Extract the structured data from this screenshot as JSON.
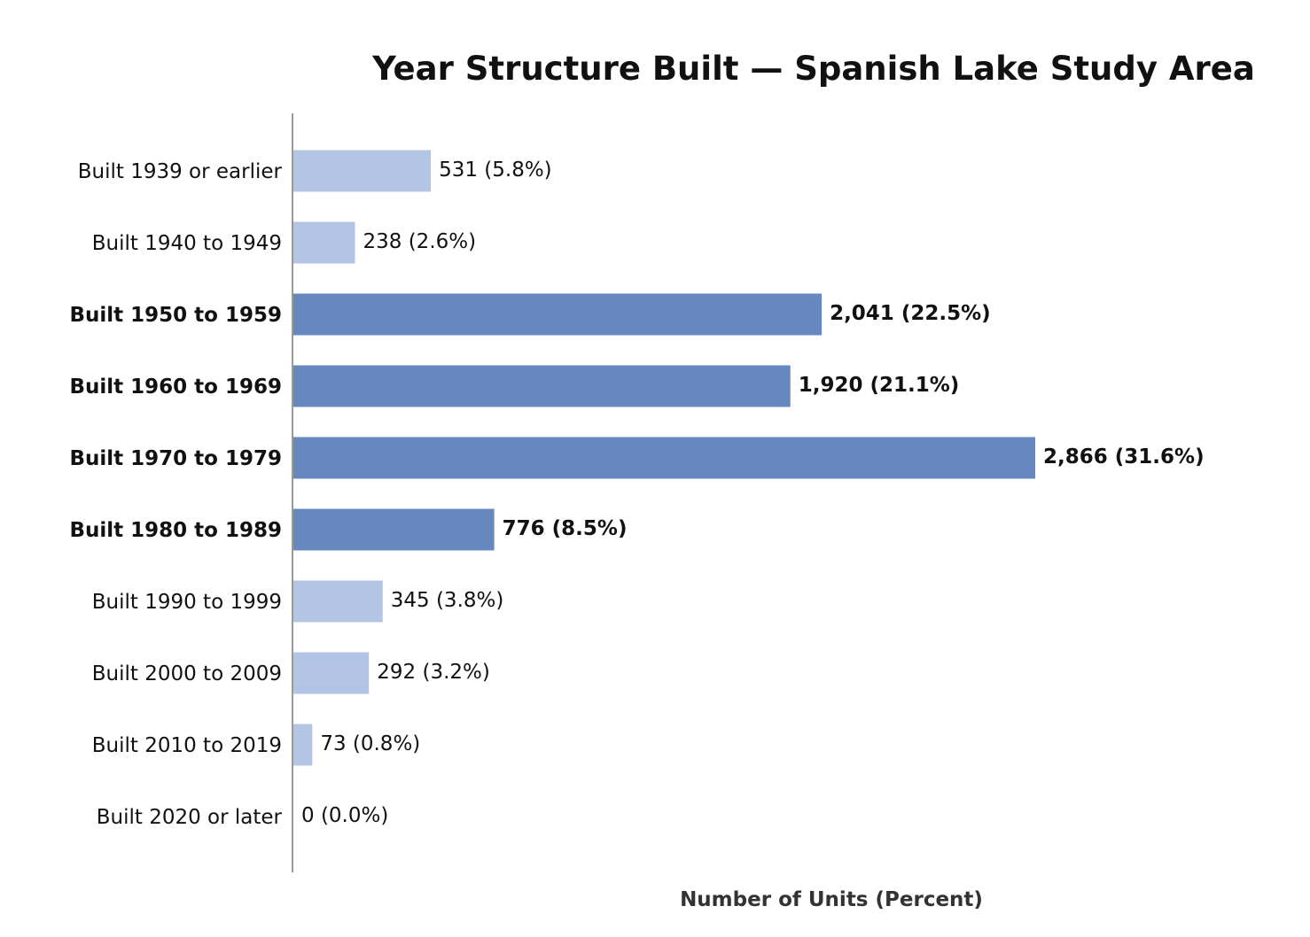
{
  "chart_data": {
    "type": "bar",
    "orientation": "horizontal",
    "title": "Year Structure Built — Spanish Lake Study Area",
    "xlabel": "Number of Units (Percent)",
    "ylabel": "",
    "categories": [
      "Built 1939 or earlier",
      "Built 1940 to 1949",
      "Built 1950 to 1959",
      "Built 1960 to 1969",
      "Built 1970 to 1979",
      "Built 1980 to 1989",
      "Built 1990 to 1999",
      "Built 2000 to 2009",
      "Built 2010 to 2019",
      "Built 2020 or later"
    ],
    "values": [
      531,
      238,
      2041,
      1920,
      2866,
      776,
      345,
      292,
      73,
      0
    ],
    "percents": [
      5.8,
      2.6,
      22.5,
      21.1,
      31.6,
      8.5,
      3.8,
      3.2,
      0.8,
      0.0
    ],
    "value_labels": [
      "531 (5.8%)",
      "238 (2.6%)",
      "2,041 (22.5%)",
      "1,920 (21.1%)",
      "2,866 (31.6%)",
      "776 (8.5%)",
      "345 (3.8%)",
      "292 (3.2%)",
      "73 (0.8%)",
      "0 (0.0%)"
    ],
    "highlighted": [
      false,
      false,
      true,
      true,
      true,
      true,
      false,
      false,
      false,
      false
    ],
    "colors": {
      "highlight": "#6688bf",
      "normal": "#b3c5e4",
      "axis": "#999999"
    },
    "xlim": [
      0,
      3050
    ],
    "grid": false,
    "legend": "none"
  }
}
